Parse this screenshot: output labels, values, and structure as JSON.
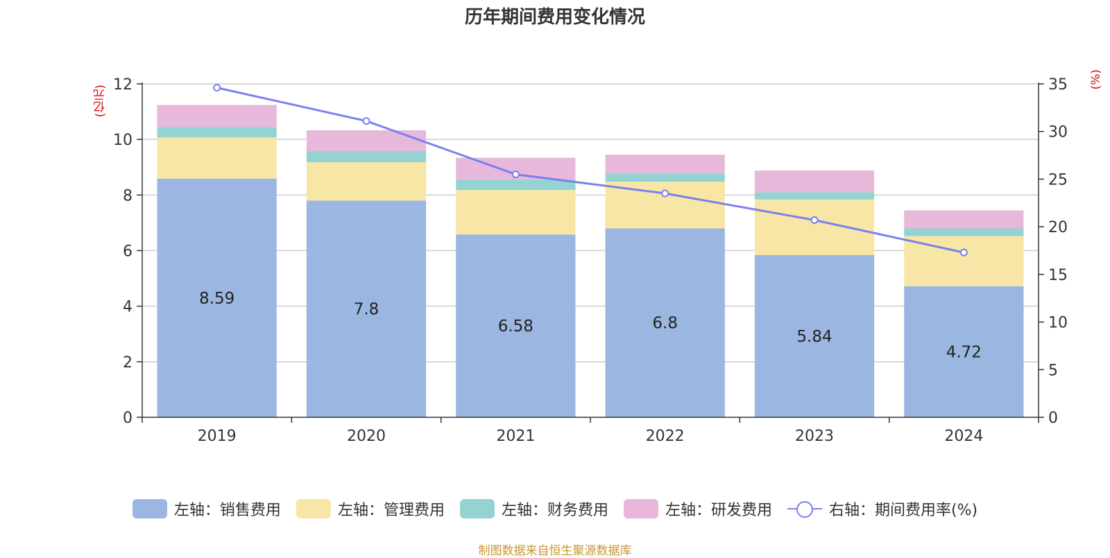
{
  "title": "历年期间费用变化情况",
  "source": "制图数据来自恒生聚源数据库",
  "chart_data": {
    "type": "bar",
    "stacked": true,
    "categories": [
      "2019",
      "2020",
      "2021",
      "2022",
      "2023",
      "2024"
    ],
    "y_left": {
      "unit": "(亿元)",
      "range": [
        0,
        12
      ],
      "ticks": [
        "0",
        "2",
        "4",
        "6",
        "8",
        "10",
        "12"
      ]
    },
    "y_right": {
      "unit": "(%)",
      "range": [
        0,
        35
      ],
      "ticks": [
        "0",
        "5",
        "10",
        "15",
        "20",
        "25",
        "30",
        "35"
      ]
    },
    "grid": true,
    "legend_position": "bottom",
    "series": [
      {
        "name": "左轴：销售费用",
        "axis": "left",
        "type": "bar",
        "color": "#9bb6e0",
        "values": [
          8.59,
          7.8,
          6.58,
          6.8,
          5.84,
          4.72
        ],
        "labels": [
          "8.59",
          "7.8",
          "6.58",
          "6.8",
          "5.84",
          "4.72"
        ]
      },
      {
        "name": "左轴：管理费用",
        "axis": "left",
        "type": "bar",
        "color": "#f7e6a6",
        "values": [
          1.48,
          1.38,
          1.6,
          1.68,
          2.0,
          1.8
        ]
      },
      {
        "name": "左轴：财务费用",
        "axis": "left",
        "type": "bar",
        "color": "#95d3d3",
        "values": [
          0.38,
          0.4,
          0.38,
          0.3,
          0.26,
          0.28
        ]
      },
      {
        "name": "左轴：研发费用",
        "axis": "left",
        "type": "bar",
        "color": "#e7b8d9",
        "values": [
          0.79,
          0.75,
          0.78,
          0.67,
          0.78,
          0.65
        ]
      },
      {
        "name": "右轴：期间费用率(%)",
        "axis": "right",
        "type": "line",
        "color": "#7b7ff0",
        "values": [
          34.6,
          31.1,
          25.5,
          23.5,
          20.7,
          17.3
        ]
      }
    ]
  }
}
